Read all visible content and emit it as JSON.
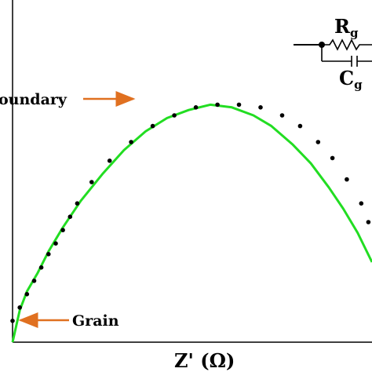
{
  "chart_data": {
    "type": "scatter",
    "title": "",
    "xlabel": "Z' (Ω)",
    "ylabel": "",
    "grid": false,
    "legend": "none",
    "xlim": [
      0,
      100
    ],
    "ylim": [
      0,
      100
    ],
    "series": [
      {
        "style": "points",
        "color": "#000000",
        "x": [
          0,
          2,
          4,
          6,
          8,
          10,
          12,
          14,
          16,
          18,
          22,
          27,
          33,
          39,
          45,
          51,
          57,
          63,
          69,
          75,
          80,
          85,
          89,
          93,
          97,
          99
        ],
        "y": [
          8,
          13,
          18,
          23,
          28,
          33,
          37,
          42,
          47,
          52,
          60,
          68,
          75,
          81,
          85,
          88,
          89,
          89,
          88,
          85,
          81,
          75,
          69,
          61,
          52,
          45
        ]
      },
      {
        "style": "fit-line",
        "color": "#22dd22",
        "x": [
          0,
          1,
          2,
          4,
          7,
          10,
          14,
          19,
          25,
          31,
          37,
          43,
          49,
          55,
          61,
          67,
          72,
          78,
          83,
          88,
          92,
          96,
          100
        ],
        "y": [
          0,
          6,
          12,
          19,
          26,
          34,
          43,
          53,
          63,
          72,
          79,
          84,
          87,
          89,
          88,
          85,
          81,
          74,
          67,
          58,
          50,
          41,
          30
        ]
      }
    ],
    "annotations": [
      {
        "text": "oundary",
        "arrow": true
      },
      {
        "text": "Grain",
        "arrow": true
      }
    ],
    "inset_circuit": {
      "resistor_label": "R",
      "resistor_subscript": "g",
      "capacitor_label": "C",
      "capacitor_subscript": "g"
    }
  },
  "colors": {
    "points": "#000000",
    "fit_line": "#22dd22",
    "arrow": "#e07020",
    "axis": "#000000"
  }
}
